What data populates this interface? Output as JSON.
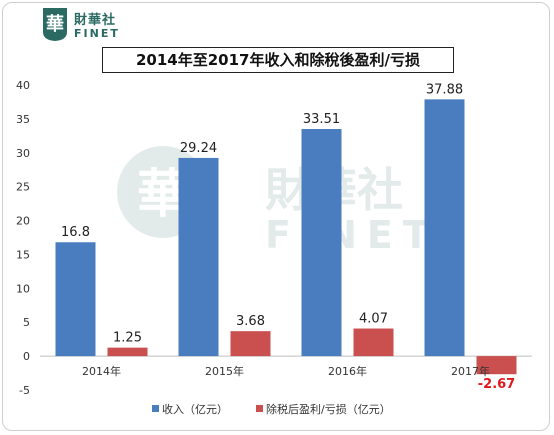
{
  "brand": {
    "cn": "財華社",
    "en": "FINET",
    "seal_char": "華"
  },
  "chart_data": {
    "type": "bar",
    "title": "2014年至2017年收入和除稅後盈利/亏损",
    "categories": [
      "2014年",
      "2015年",
      "2016年",
      "2017年"
    ],
    "series": [
      {
        "name": "收入（亿元）",
        "values": [
          16.8,
          29.24,
          33.51,
          37.88
        ],
        "labels": [
          "16.8",
          "29.24",
          "33.51",
          "37.88"
        ],
        "color": "#4a7cc0"
      },
      {
        "name": "除税后盈利/亏损（亿元）",
        "values": [
          1.25,
          3.68,
          4.07,
          -2.67
        ],
        "labels": [
          "1.25",
          "3.68",
          "4.07",
          "-2.67"
        ],
        "color": "#c9504f"
      }
    ],
    "yticks": [
      "-5",
      "0",
      "5",
      "10",
      "15",
      "20",
      "25",
      "30",
      "35",
      "40"
    ],
    "ylim": [
      -5,
      40
    ],
    "negative_label_color": "#e0191c",
    "legend_position": "bottom",
    "grid": false
  }
}
